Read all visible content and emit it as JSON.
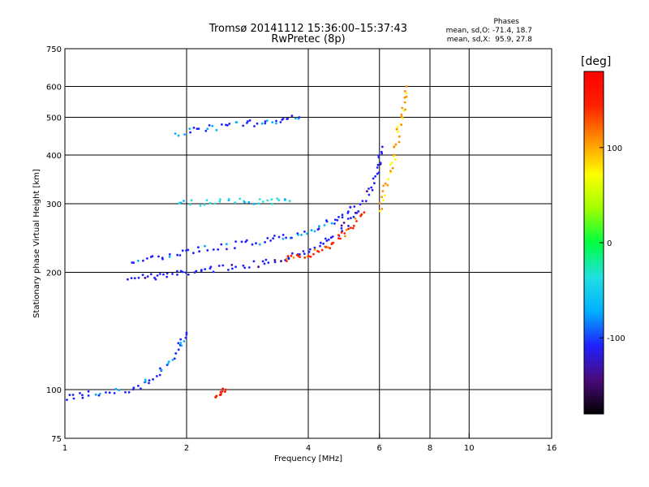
{
  "header": {
    "title_line1": "Tromsø 20141112 15:36:00–15:37:43",
    "title_line2": "RwPretec (8p)"
  },
  "stats": {
    "title": "Phases",
    "o_line": "mean, sd,O: -71.4, 18.7",
    "x_line": "mean, sd,X:  95.9, 27.8"
  },
  "colorbar": {
    "title": "[deg]",
    "range": [
      -180,
      180
    ],
    "ticks": [
      100,
      0,
      -100
    ],
    "tick_labels": [
      "100",
      "0",
      "-100"
    ],
    "colors": [
      "#000000",
      "#4a0a7a",
      "#2020ff",
      "#00b0ff",
      "#20e0e0",
      "#00ff40",
      "#a0ff00",
      "#ffff00",
      "#ff9000",
      "#ff2000",
      "#ff0000"
    ]
  },
  "chart_data": {
    "type": "scatter",
    "title": "Tromsø 20141112 15:36:00–15:37:43",
    "subtitle": "RwPretec (8p)",
    "xlabel": "Frequency [MHz]",
    "ylabel": "Stationary phase Virtual Height [km]",
    "x_scale": "log",
    "y_scale": "log",
    "xlim": [
      1,
      16
    ],
    "ylim": [
      75,
      750
    ],
    "xticks": [
      1,
      2,
      4,
      6,
      8,
      10,
      16
    ],
    "xtick_labels": [
      "1",
      "2",
      "4",
      "6",
      "8",
      "10",
      "16"
    ],
    "yticks": [
      75,
      100,
      200,
      300,
      400,
      500,
      600,
      750
    ],
    "ytick_labels": [
      "75",
      "100",
      "200",
      "300",
      "400",
      "500",
      "600",
      "750"
    ],
    "x_grid": [
      2,
      4,
      6,
      8,
      10
    ],
    "y_grid": [
      100,
      200,
      300,
      400,
      500,
      600
    ],
    "color_variable": "Phase [deg]",
    "series": [
      {
        "x": [
          1.45,
          1.7,
          2.0,
          2.4,
          3.0,
          3.6,
          4.3,
          4.9,
          5.5,
          5.9,
          6.1
        ],
        "y": [
          195,
          195,
          200,
          205,
          210,
          220,
          235,
          260,
          300,
          360,
          420
        ],
        "phase": -110
      },
      {
        "x": [
          1.45,
          1.8,
          2.2,
          2.8,
          3.4,
          4.0,
          4.6,
          5.2
        ],
        "y": [
          210,
          220,
          230,
          237,
          245,
          255,
          270,
          295
        ],
        "phase": -100
      },
      {
        "x": [
          3.5,
          4.0,
          4.5,
          5.0,
          5.5
        ],
        "y": [
          215,
          222,
          235,
          255,
          285
        ],
        "phase": 140
      },
      {
        "x": [
          6.0,
          6.3,
          6.6,
          6.8,
          7.0
        ],
        "y": [
          290,
          350,
          420,
          500,
          600
        ],
        "phase": 95
      },
      {
        "x": [
          1.9,
          2.3,
          2.8,
          3.3,
          3.8
        ],
        "y": [
          455,
          470,
          480,
          490,
          500
        ],
        "phase": -95
      },
      {
        "x": [
          1.9,
          2.4,
          3.0,
          3.6
        ],
        "y": [
          300,
          302,
          305,
          305
        ],
        "phase": -40
      },
      {
        "x": [
          1.0,
          1.2,
          1.5,
          1.7,
          1.9,
          2.0
        ],
        "y": [
          95,
          98,
          100,
          110,
          125,
          140
        ],
        "phase": -100
      },
      {
        "x": [
          2.35,
          2.5
        ],
        "y": [
          95,
          100
        ],
        "phase": 150
      }
    ]
  }
}
